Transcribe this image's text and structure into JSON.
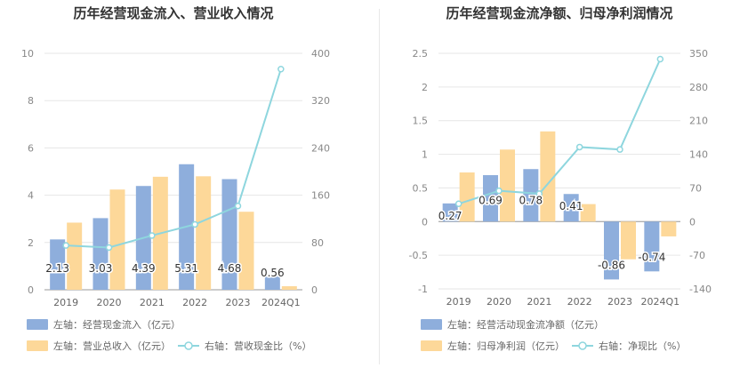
{
  "chart_data": [
    {
      "type": "bar",
      "title": "历年经营现金流入、营业收入情况",
      "categories": [
        "2019",
        "2020",
        "2021",
        "2022",
        "2023",
        "2024Q1"
      ],
      "left_axis": {
        "ylim": [
          0,
          10
        ],
        "ticks": [
          0,
          2,
          4,
          6,
          8,
          10
        ]
      },
      "right_axis": {
        "ylim": [
          0,
          400
        ],
        "ticks": [
          0,
          80,
          160,
          240,
          320,
          400
        ]
      },
      "series": [
        {
          "name": "左轴：经营现金流入（亿元）",
          "kind": "bar",
          "axis": "left",
          "color": "#8eaedc",
          "values": [
            2.13,
            3.03,
            4.39,
            5.31,
            4.68,
            0.56
          ],
          "data_labels": [
            "2.13",
            "3.03",
            "4.39",
            "5.31",
            "4.68",
            "0.56"
          ]
        },
        {
          "name": "左轴：营业总收入（亿元）",
          "kind": "bar",
          "axis": "left",
          "color": "#fdd899",
          "values": [
            2.84,
            4.24,
            4.78,
            4.8,
            3.3,
            0.15
          ]
        },
        {
          "name": "右轴：营收现金比（%）",
          "kind": "line",
          "axis": "right",
          "color": "#8ed6de",
          "values": [
            75.0,
            71.5,
            91.8,
            110.6,
            141.8,
            373.3
          ]
        }
      ],
      "grid": true,
      "legend": "bottom"
    },
    {
      "type": "bar",
      "title": "历年经营现金流净额、归母净利润情况",
      "categories": [
        "2019",
        "2020",
        "2021",
        "2022",
        "2023",
        "2024Q1"
      ],
      "left_axis": {
        "ylim": [
          -1,
          2.5
        ],
        "ticks": [
          -1,
          -0.5,
          0,
          0.5,
          1,
          1.5,
          2,
          2.5
        ]
      },
      "right_axis": {
        "ylim": [
          -140,
          350
        ],
        "ticks": [
          -140,
          -70,
          0,
          70,
          140,
          210,
          280,
          350
        ]
      },
      "series": [
        {
          "name": "左轴：经营活动现金流净额（亿元）",
          "kind": "bar",
          "axis": "left",
          "color": "#8eaedc",
          "values": [
            0.27,
            0.69,
            0.78,
            0.41,
            -0.86,
            -0.74
          ],
          "data_labels": [
            "0.27",
            "0.69",
            "0.78",
            "0.41",
            "-0.86",
            "-0.74"
          ]
        },
        {
          "name": "左轴：归母净利润（亿元）",
          "kind": "bar",
          "axis": "left",
          "color": "#fdd899",
          "values": [
            0.73,
            1.07,
            1.34,
            0.26,
            -0.56,
            -0.22
          ]
        },
        {
          "name": "右轴：净现比（%）",
          "kind": "line",
          "axis": "right",
          "color": "#8ed6de",
          "values": [
            37,
            64,
            58,
            155,
            150,
            338
          ]
        }
      ],
      "grid": true,
      "legend": "bottom"
    }
  ]
}
